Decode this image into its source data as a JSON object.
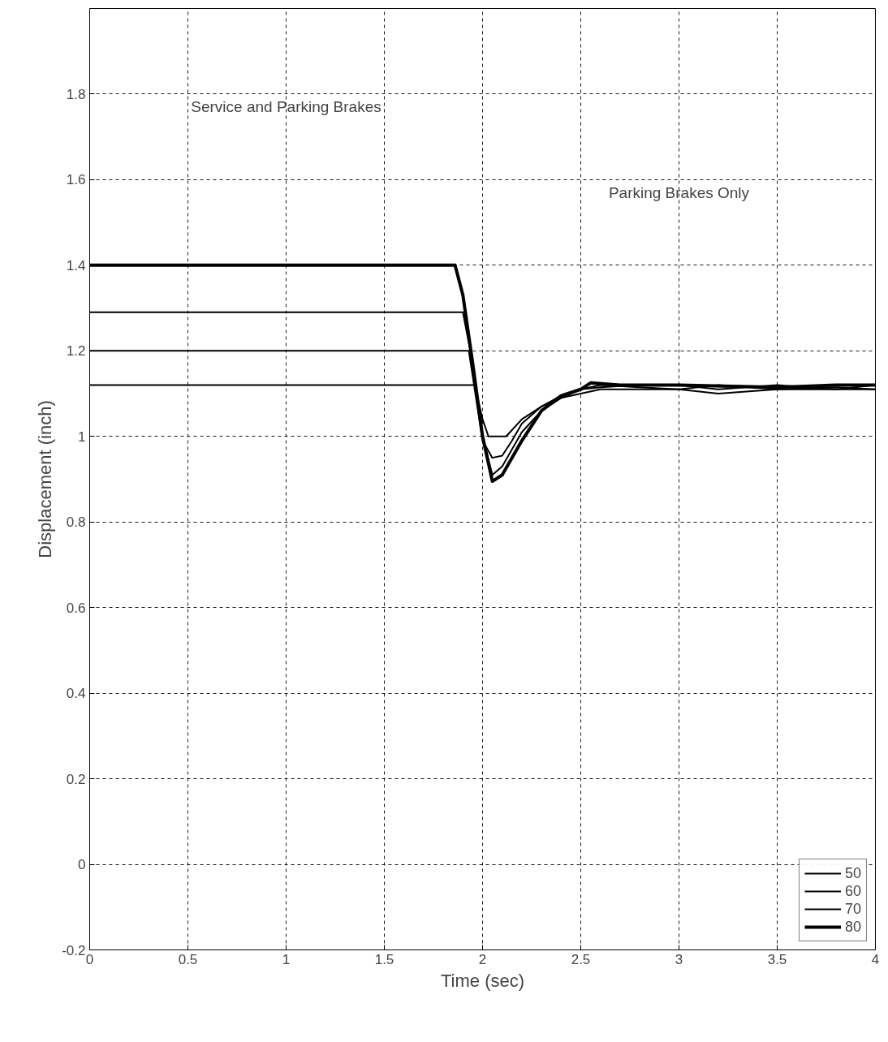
{
  "chart_data": {
    "type": "line",
    "xlabel": "Time (sec)",
    "ylabel": "Displacement (inch)",
    "xlim": [
      0,
      4
    ],
    "ylim": [
      -0.2,
      2.0
    ],
    "xticks": [
      0,
      0.5,
      1,
      1.5,
      2,
      2.5,
      3,
      3.5,
      4
    ],
    "yticks": [
      -0.2,
      0,
      0.2,
      0.4,
      0.6,
      0.8,
      1,
      1.2,
      1.4,
      1.6,
      1.8
    ],
    "grid": true,
    "legend": "bottom right",
    "line_style": "solid",
    "marker": "none",
    "annotations": [
      "Service and Parking Brakes",
      "Parking Brakes Only"
    ],
    "series": [
      {
        "name": "50",
        "color": "#000000",
        "x": [
          0,
          0.5,
          1,
          1.5,
          1.9,
          1.96,
          2.0,
          2.03,
          2.12,
          2.2,
          2.3,
          2.4,
          2.5,
          2.6,
          2.8,
          3.0,
          3.2,
          3.5,
          3.8,
          4.0
        ],
        "values": [
          1.12,
          1.12,
          1.12,
          1.12,
          1.12,
          1.12,
          1.04,
          1.0,
          1.0,
          1.04,
          1.07,
          1.09,
          1.1,
          1.11,
          1.11,
          1.11,
          1.1,
          1.11,
          1.11,
          1.11
        ]
      },
      {
        "name": "60",
        "color": "#000000",
        "x": [
          0,
          0.5,
          1,
          1.5,
          1.93,
          2.0,
          2.05,
          2.1,
          2.15,
          2.2,
          2.3,
          2.4,
          2.5,
          2.6,
          2.8,
          3.0,
          3.2,
          3.5,
          3.8,
          4.0
        ],
        "values": [
          1.2,
          1.2,
          1.2,
          1.2,
          1.2,
          0.99,
          0.95,
          0.955,
          0.99,
          1.03,
          1.07,
          1.095,
          1.11,
          1.115,
          1.12,
          1.12,
          1.11,
          1.12,
          1.11,
          1.12
        ]
      },
      {
        "name": "70",
        "color": "#000000",
        "x": [
          0,
          0.5,
          1,
          1.5,
          1.9,
          1.95,
          2.0,
          2.05,
          2.1,
          2.2,
          2.3,
          2.4,
          2.5,
          2.6,
          2.8,
          3.0,
          3.2,
          3.5,
          3.8,
          4.0
        ],
        "values": [
          1.29,
          1.29,
          1.29,
          1.29,
          1.29,
          1.17,
          1.0,
          0.91,
          0.93,
          1.01,
          1.06,
          1.09,
          1.11,
          1.12,
          1.115,
          1.11,
          1.12,
          1.11,
          1.115,
          1.11
        ]
      },
      {
        "name": "80",
        "color": "#000000",
        "x": [
          0,
          0.5,
          1,
          1.5,
          1.86,
          1.9,
          1.95,
          2.0,
          2.05,
          2.1,
          2.2,
          2.3,
          2.4,
          2.5,
          2.55,
          2.7,
          3.0,
          3.5,
          3.8,
          4.0
        ],
        "values": [
          1.4,
          1.4,
          1.4,
          1.4,
          1.4,
          1.33,
          1.17,
          1.0,
          0.895,
          0.91,
          0.99,
          1.06,
          1.095,
          1.11,
          1.125,
          1.12,
          1.12,
          1.115,
          1.12,
          1.12
        ]
      }
    ]
  }
}
